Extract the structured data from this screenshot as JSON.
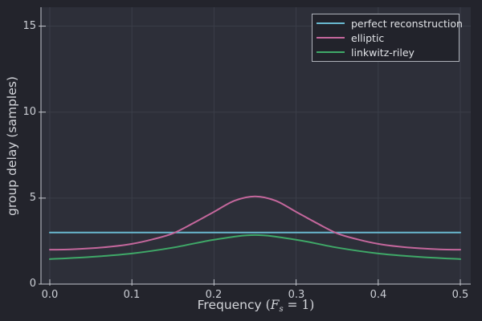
{
  "figure": {
    "background": "#23242c",
    "plot_background": "#2d2f39",
    "grid_color": "#3b3e49",
    "axis_color": "#c3c6cd",
    "tick_text_color": "#cbced5",
    "label_text_color": "#d4d6db"
  },
  "chart_data": {
    "type": "line",
    "title": "",
    "xlabel": "Frequency (Fs = 1)",
    "xlabel_parts": {
      "prefix": "Frequency ",
      "open": "(",
      "var": "F",
      "sub": "s",
      "suffix": " = 1)"
    },
    "ylabel": "group delay (samples)",
    "xlim": [
      0,
      0.5
    ],
    "ylim": [
      0,
      16.1
    ],
    "grid": true,
    "legend_position": "top-right",
    "xticks": [
      0,
      0.1,
      0.2,
      0.3,
      0.4,
      0.5
    ],
    "xtick_labels": [
      "0.0",
      "0.1",
      "0.2",
      "0.3",
      "0.4",
      "0.5"
    ],
    "yticks": [
      0,
      5,
      10,
      15
    ],
    "ytick_labels": [
      "0",
      "5",
      "10",
      "15"
    ],
    "series": [
      {
        "name": "perfect reconstruction",
        "color": "#69b9d0",
        "points": [
          [
            0,
            3
          ],
          [
            0.5,
            3
          ]
        ]
      },
      {
        "name": "elliptic",
        "color": "#c4679c",
        "points": [
          [
            0,
            2.0
          ],
          [
            0.025,
            2.02
          ],
          [
            0.05,
            2.08
          ],
          [
            0.075,
            2.18
          ],
          [
            0.1,
            2.34
          ],
          [
            0.125,
            2.6
          ],
          [
            0.15,
            2.95
          ],
          [
            0.175,
            3.55
          ],
          [
            0.2,
            4.2
          ],
          [
            0.225,
            4.85
          ],
          [
            0.25,
            5.1
          ],
          [
            0.275,
            4.85
          ],
          [
            0.3,
            4.2
          ],
          [
            0.325,
            3.55
          ],
          [
            0.35,
            2.95
          ],
          [
            0.375,
            2.6
          ],
          [
            0.4,
            2.34
          ],
          [
            0.425,
            2.18
          ],
          [
            0.45,
            2.08
          ],
          [
            0.475,
            2.02
          ],
          [
            0.5,
            2.0
          ]
        ]
      },
      {
        "name": "linkwitz-riley",
        "color": "#3fa968",
        "points": [
          [
            0,
            1.45
          ],
          [
            0.05,
            1.58
          ],
          [
            0.1,
            1.78
          ],
          [
            0.15,
            2.12
          ],
          [
            0.2,
            2.58
          ],
          [
            0.25,
            2.85
          ],
          [
            0.3,
            2.58
          ],
          [
            0.35,
            2.12
          ],
          [
            0.4,
            1.78
          ],
          [
            0.45,
            1.58
          ],
          [
            0.5,
            1.45
          ]
        ]
      }
    ]
  }
}
